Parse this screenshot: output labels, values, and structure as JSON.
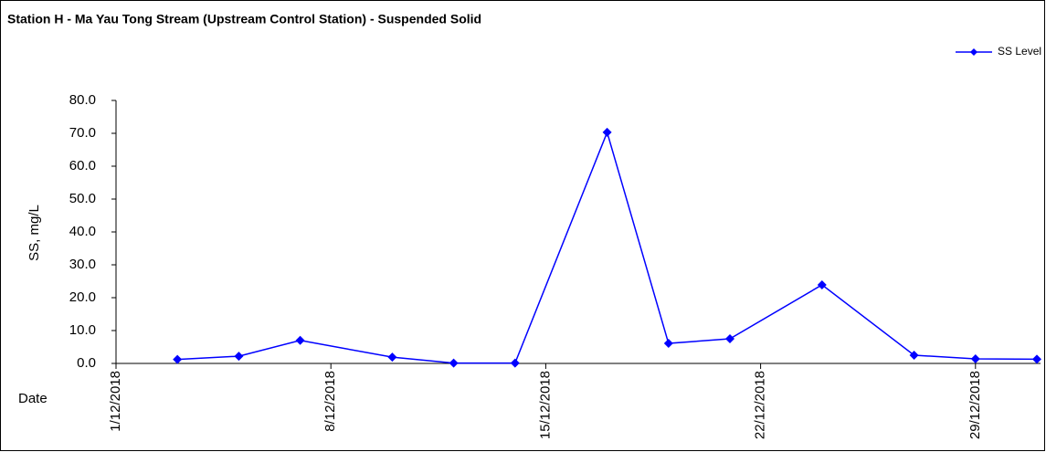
{
  "chart_data": {
    "type": "line",
    "title": "Station H - Ma Yau Tong Stream (Upstream Control Station) - Suspended Solid",
    "ylabel": "SS, mg/L",
    "xlabel": "Date",
    "x": [
      "3/12/2018",
      "5/12/2018",
      "7/12/2018",
      "10/12/2018",
      "12/12/2018",
      "14/12/2018",
      "17/12/2018",
      "19/12/2018",
      "21/12/2018",
      "24/12/2018",
      "27/12/2018",
      "29/12/2018",
      "31/12/2018"
    ],
    "series": [
      {
        "name": "SS Level",
        "color": "#0000ff",
        "values": [
          1.2,
          2.2,
          7.0,
          1.9,
          0.1,
          0.1,
          70.3,
          6.1,
          7.5,
          23.9,
          2.5,
          1.4,
          1.3
        ]
      }
    ],
    "xlim": [
      "1/12/2018",
      "31/12/2018"
    ],
    "xticks": [
      "1/12/2018",
      "8/12/2018",
      "15/12/2018",
      "22/12/2018",
      "29/12/2018"
    ],
    "ylim": [
      0,
      80
    ],
    "yticks": [
      {
        "value": 0,
        "label": "0.0"
      },
      {
        "value": 10,
        "label": "10.0"
      },
      {
        "value": 20,
        "label": "20.0"
      },
      {
        "value": 30,
        "label": "30.0"
      },
      {
        "value": 40,
        "label": "40.0"
      },
      {
        "value": 50,
        "label": "50.0"
      },
      {
        "value": 60,
        "label": "60.0"
      },
      {
        "value": 70,
        "label": "70.0"
      },
      {
        "value": 80,
        "label": "80.0"
      }
    ],
    "legend": "top-right"
  }
}
